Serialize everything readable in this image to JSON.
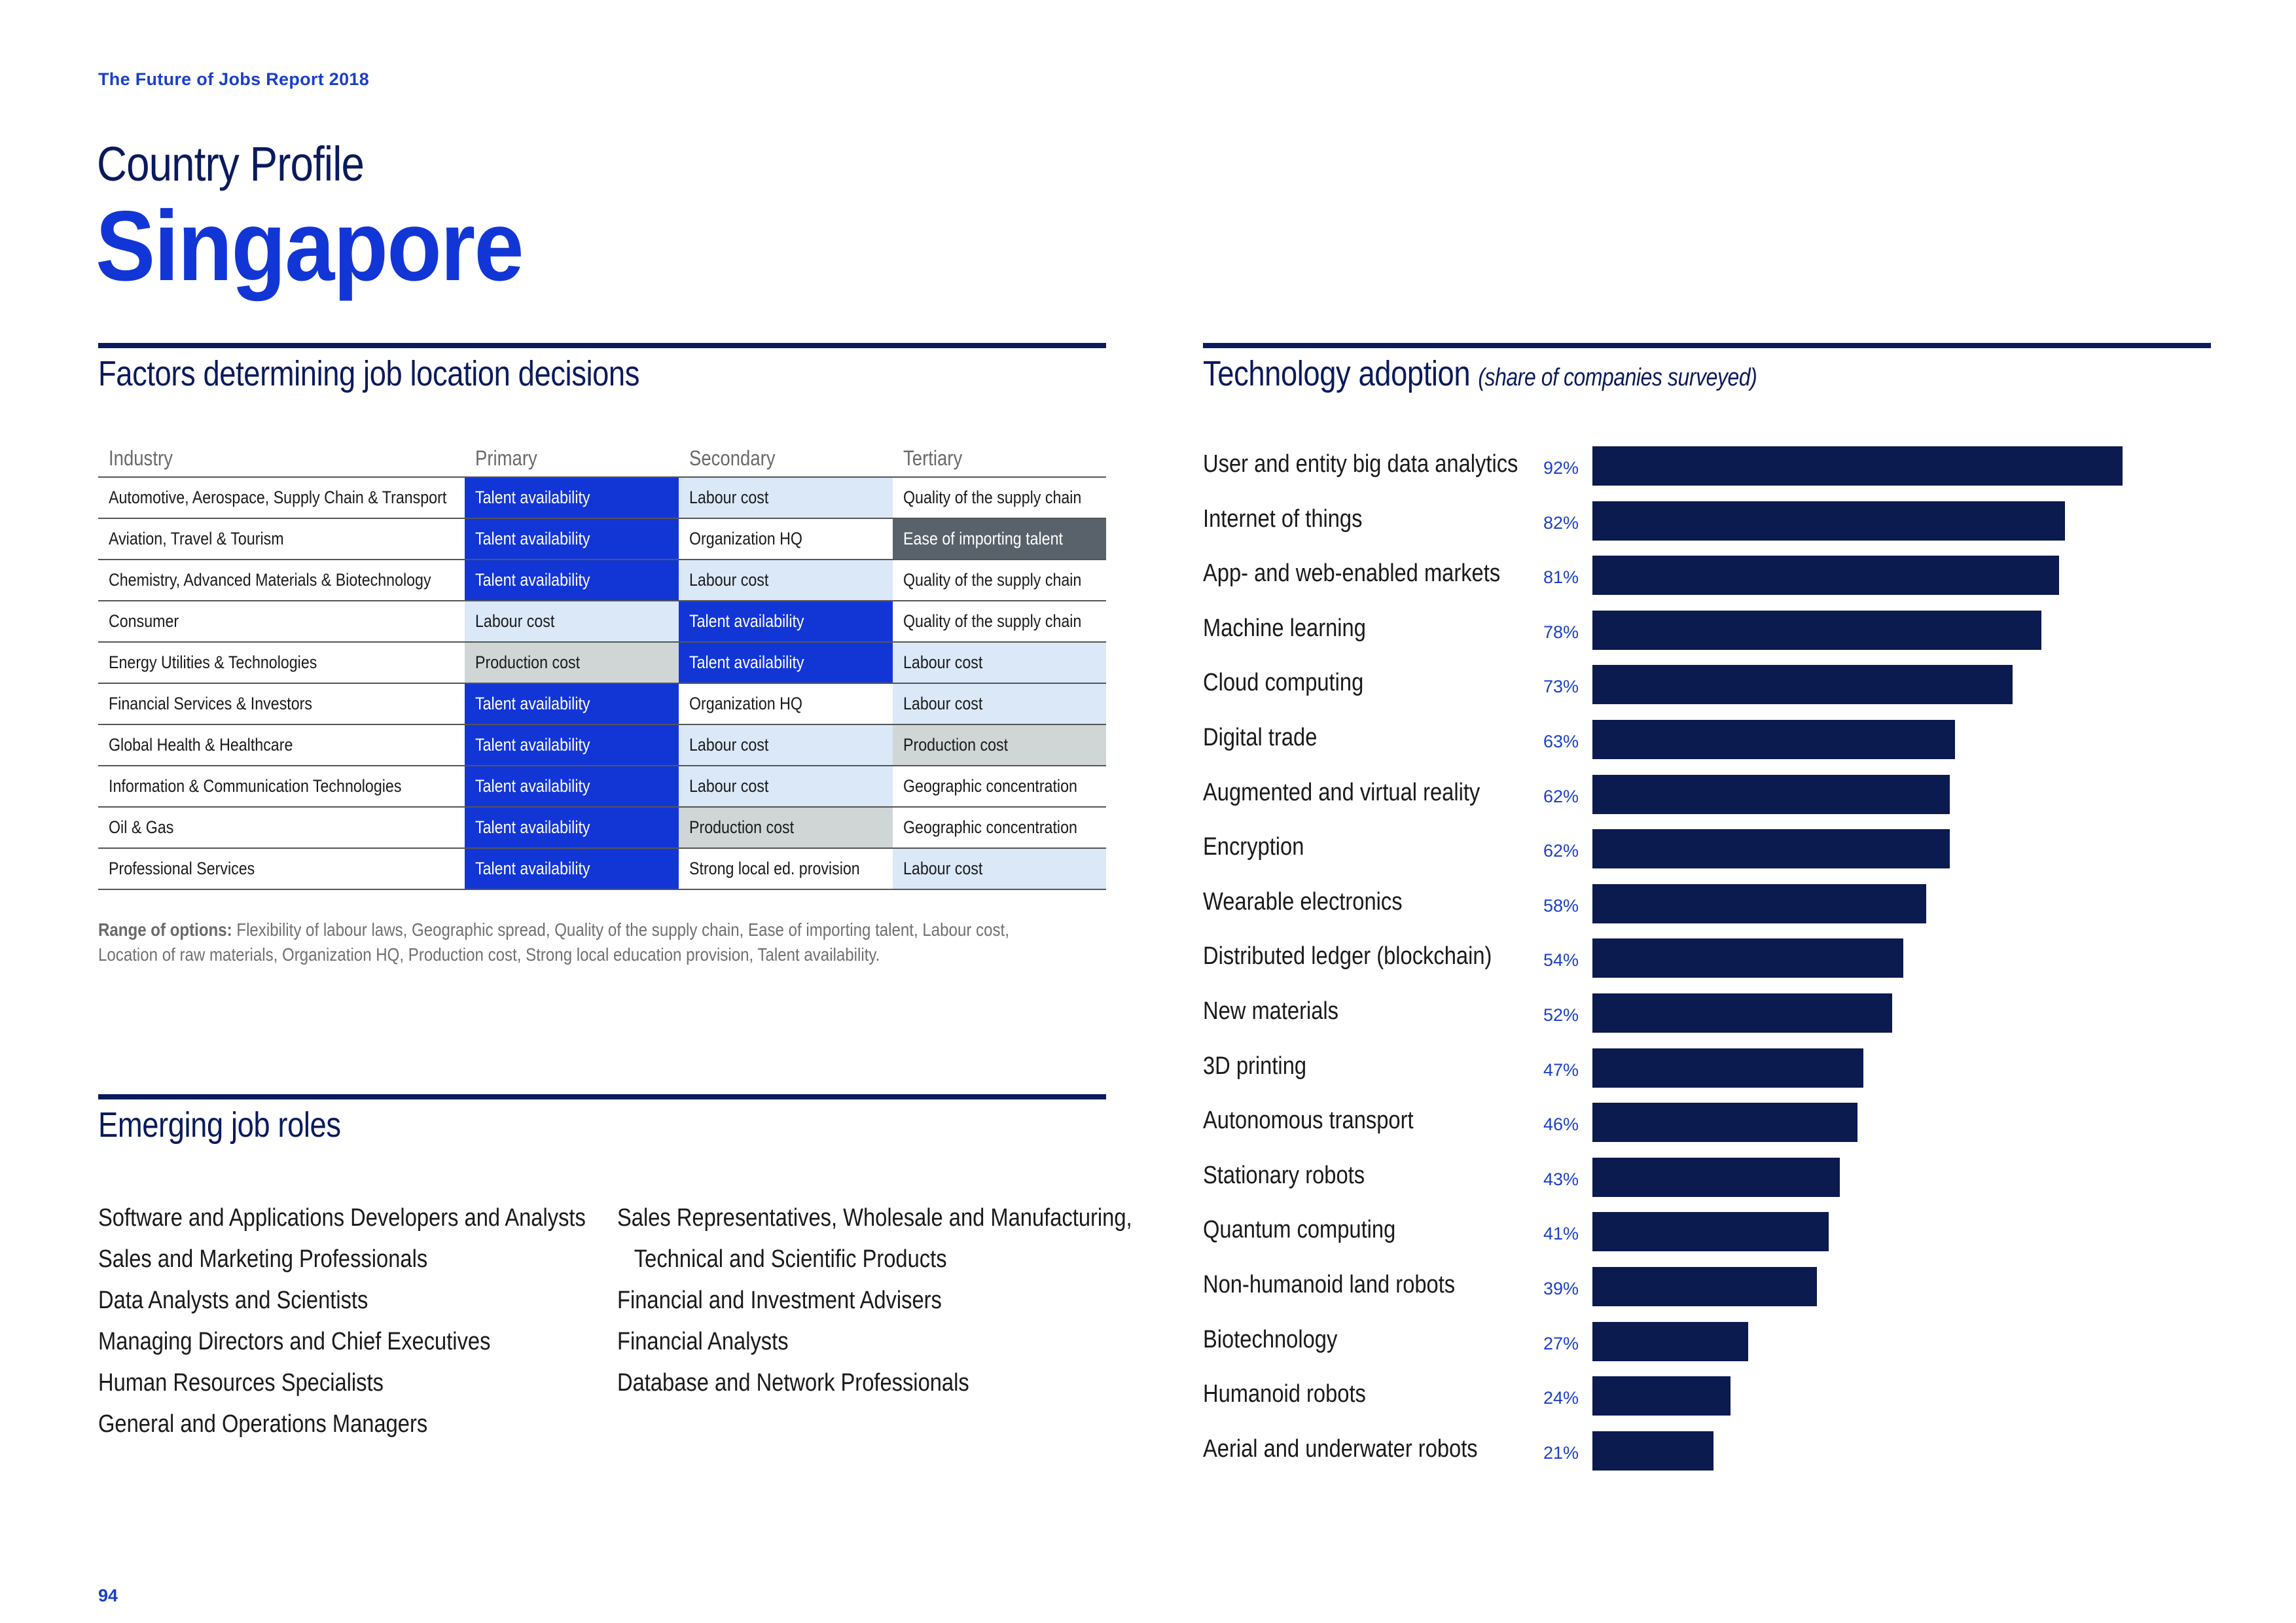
{
  "header": {
    "report_label": "The Future of Jobs Report 2018",
    "subtitle": "Country Profile",
    "title": "Singapore"
  },
  "factors": {
    "heading": "Factors determining job location decisions",
    "columns": [
      "Industry",
      "Primary",
      "Secondary",
      "Tertiary"
    ],
    "rows": [
      {
        "industry": "Automotive, Aerospace, Supply Chain & Transport",
        "primary": "Talent availability",
        "primary_fill": "blue",
        "secondary": "Labour cost",
        "secondary_fill": "light",
        "tertiary": "Quality of the supply chain",
        "tertiary_fill": "none"
      },
      {
        "industry": "Aviation, Travel & Tourism",
        "primary": "Talent availability",
        "primary_fill": "blue",
        "secondary": "Organization HQ",
        "secondary_fill": "none",
        "tertiary": "Ease of importing talent",
        "tertiary_fill": "dark"
      },
      {
        "industry": "Chemistry, Advanced Materials & Biotechnology",
        "primary": "Talent availability",
        "primary_fill": "blue",
        "secondary": "Labour cost",
        "secondary_fill": "light",
        "tertiary": "Quality of the supply chain",
        "tertiary_fill": "none"
      },
      {
        "industry": "Consumer",
        "primary": "Labour cost",
        "primary_fill": "light",
        "secondary": "Talent availability",
        "secondary_fill": "blue",
        "tertiary": "Quality of the supply chain",
        "tertiary_fill": "none"
      },
      {
        "industry": "Energy Utilities & Technologies",
        "primary": "Production cost",
        "primary_fill": "grey",
        "secondary": "Talent availability",
        "secondary_fill": "blue",
        "tertiary": "Labour cost",
        "tertiary_fill": "light"
      },
      {
        "industry": "Financial Services & Investors",
        "primary": "Talent availability",
        "primary_fill": "blue",
        "secondary": "Organization HQ",
        "secondary_fill": "none",
        "tertiary": "Labour cost",
        "tertiary_fill": "light"
      },
      {
        "industry": "Global Health & Healthcare",
        "primary": "Talent availability",
        "primary_fill": "blue",
        "secondary": "Labour cost",
        "secondary_fill": "light",
        "tertiary": "Production cost",
        "tertiary_fill": "grey"
      },
      {
        "industry": "Information & Communication Technologies",
        "primary": "Talent availability",
        "primary_fill": "blue",
        "secondary": "Labour cost",
        "secondary_fill": "light",
        "tertiary": "Geographic concentration",
        "tertiary_fill": "none"
      },
      {
        "industry": "Oil & Gas",
        "primary": "Talent availability",
        "primary_fill": "blue",
        "secondary": "Production cost",
        "secondary_fill": "grey",
        "tertiary": "Geographic concentration",
        "tertiary_fill": "none"
      },
      {
        "industry": "Professional Services",
        "primary": "Talent availability",
        "primary_fill": "blue",
        "secondary": "Strong local ed. provision",
        "secondary_fill": "none",
        "tertiary": "Labour cost",
        "tertiary_fill": "light"
      }
    ],
    "note_label": "Range of options:",
    "note_text": " Flexibility of labour laws, Geographic spread, Quality of the supply chain, Ease of importing talent, Labour cost, Location of raw materials, Organization HQ, Production cost, Strong local education provision, Talent availability."
  },
  "roles": {
    "heading": "Emerging job roles",
    "left": [
      "Software and Applications Developers and Analysts",
      "Sales and Marketing Professionals",
      "Data Analysts and Scientists",
      "Managing Directors and Chief Executives",
      "Human Resources Specialists",
      "General and Operations Managers"
    ],
    "right": [
      "Sales Representatives, Wholesale and Manufacturing,",
      "Technical and Scientific Products",
      "Financial and Investment Advisers",
      "Financial Analysts",
      "Database and Network Professionals"
    ]
  },
  "tech": {
    "heading": "Technology adoption",
    "heading_note": "(share of companies surveyed)"
  },
  "chart_data": {
    "type": "bar",
    "title": "Technology adoption (share of companies surveyed)",
    "orientation": "horizontal",
    "categories": [
      "User and entity big data analytics",
      "Internet of things",
      "App- and web-enabled markets",
      "Machine learning",
      "Cloud computing",
      "Digital trade",
      "Augmented and virtual reality",
      "Encryption",
      "Wearable electronics",
      "Distributed ledger (blockchain)",
      "New materials",
      "3D printing",
      "Autonomous transport",
      "Stationary robots",
      "Quantum computing",
      "Non-humanoid land robots",
      "Biotechnology",
      "Humanoid robots",
      "Aerial and underwater robots"
    ],
    "values": [
      92,
      82,
      81,
      78,
      73,
      63,
      62,
      62,
      58,
      54,
      52,
      47,
      46,
      43,
      41,
      39,
      27,
      24,
      21
    ],
    "labels": [
      "92%",
      "82%",
      "81%",
      "78%",
      "73%",
      "63%",
      "62%",
      "62%",
      "58%",
      "54%",
      "52%",
      "47%",
      "46%",
      "43%",
      "41%",
      "39%",
      "27%",
      "24%",
      "21%"
    ],
    "xlim": [
      0,
      100
    ],
    "bar_color": "#0b1a4f"
  },
  "footer": {
    "page_number": "94"
  }
}
